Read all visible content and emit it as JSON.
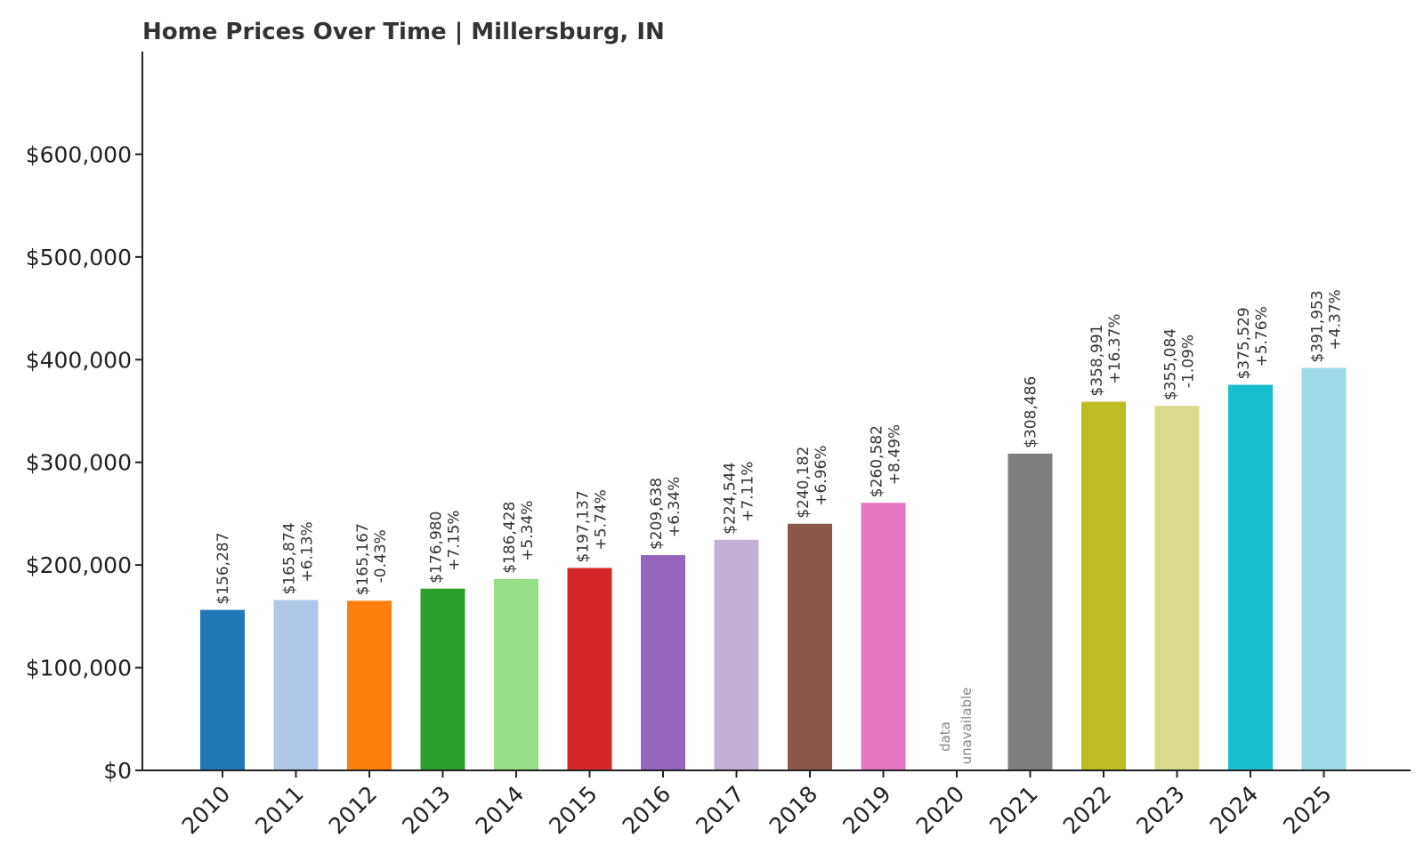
{
  "chart_data": {
    "type": "bar",
    "title": "Home Prices Over Time | Millersburg, IN",
    "xlabel": "",
    "ylabel": "",
    "ylim": [
      0,
      700000
    ],
    "yticks": [
      0,
      100000,
      200000,
      300000,
      400000,
      500000,
      600000
    ],
    "ytick_labels": [
      "$0",
      "$100,000",
      "$200,000",
      "$300,000",
      "$400,000",
      "$500,000",
      "$600,000"
    ],
    "categories": [
      "2010",
      "2011",
      "2012",
      "2013",
      "2014",
      "2015",
      "2016",
      "2017",
      "2018",
      "2019",
      "2020",
      "2021",
      "2022",
      "2023",
      "2024",
      "2025"
    ],
    "values": [
      156287,
      165874,
      165167,
      176980,
      186428,
      197137,
      209638,
      224544,
      240182,
      260582,
      null,
      308486,
      358991,
      355084,
      375529,
      391953
    ],
    "value_labels": [
      "$156,287",
      "$165,874",
      "$165,167",
      "$176,980",
      "$186,428",
      "$197,137",
      "$209,638",
      "$224,544",
      "$240,182",
      "$260,582",
      "",
      "$308,486",
      "$358,991",
      "$355,084",
      "$375,529",
      "$391,953"
    ],
    "change_labels": [
      "",
      "+6.13%",
      "-0.43%",
      "+7.15%",
      "+5.34%",
      "+5.74%",
      "+6.34%",
      "+7.11%",
      "+6.96%",
      "+8.49%",
      "",
      "",
      "+16.37%",
      "-1.09%",
      "+5.76%",
      "+4.37%"
    ],
    "missing_label": [
      "data",
      "unavailable"
    ],
    "colors": [
      "#1f77b4",
      "#aec7e8",
      "#ff7f0e",
      "#2ca02c",
      "#98df8a",
      "#d62728",
      "#9467bd",
      "#c5b0d5",
      "#8c564b",
      "#e377c2",
      "#7f7f7f",
      "#7f7f7f",
      "#bcbd22",
      "#dbdb8d",
      "#17becf",
      "#9edae5"
    ],
    "axis_color": "#222222",
    "grid": false,
    "legend": "none"
  }
}
